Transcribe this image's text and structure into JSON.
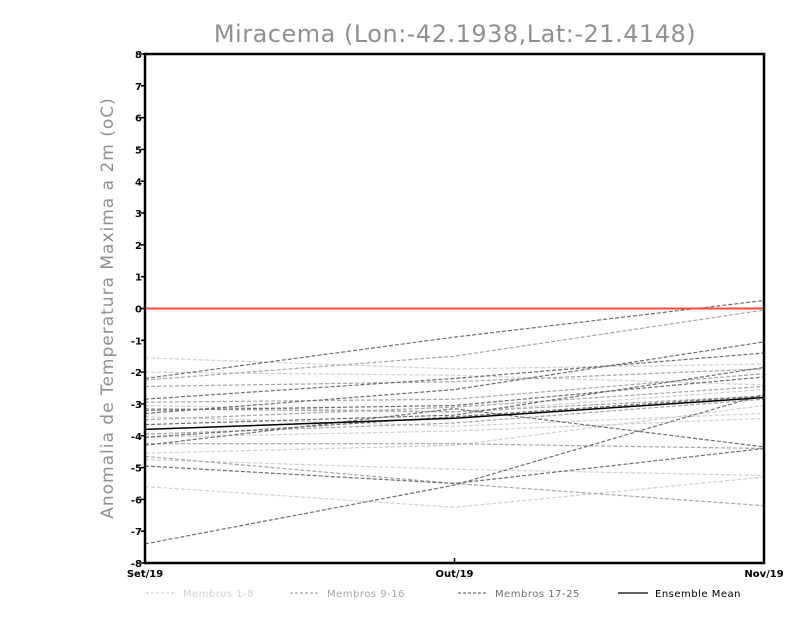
{
  "chart_data": {
    "type": "line",
    "title": "Miracema (Lon:-42.1938,Lat:-21.4148)",
    "ylabel": "Anomalia de Temperatura Maxima a 2m (oC)",
    "xlabel": "",
    "categories": [
      "Set/19",
      "Out/19",
      "Nov/19"
    ],
    "ylim": [
      -8,
      8
    ],
    "yticks": [
      "-8",
      "-7",
      "-6",
      "-5",
      "-4",
      "-3",
      "-2",
      "-1",
      "0",
      "1",
      "2",
      "3",
      "4",
      "5",
      "6",
      "7",
      "8"
    ],
    "reference_line": {
      "value": 0,
      "color": "#ff4a3a"
    },
    "legend_position": "bottom",
    "series": [
      {
        "name": "Membros 1-8",
        "color": "#d0d0d0",
        "style": "dashed",
        "members": [
          [
            -1.55,
            -1.9,
            -1.75
          ],
          [
            -2.0,
            -2.1,
            -2.4
          ],
          [
            -3.05,
            -3.25,
            -2.55
          ],
          [
            -3.4,
            -3.7,
            -3.3
          ],
          [
            -4.05,
            -3.85,
            -3.45
          ],
          [
            -4.55,
            -4.3,
            -3.05
          ],
          [
            -4.75,
            -5.05,
            -5.25
          ],
          [
            -5.6,
            -6.25,
            -5.3
          ]
        ]
      },
      {
        "name": "Membros 9-16",
        "color": "#a6a6a6",
        "style": "dashed",
        "members": [
          [
            -2.25,
            -1.5,
            -0.05
          ],
          [
            -2.45,
            -2.3,
            -1.9
          ],
          [
            -2.95,
            -2.85,
            -2.05
          ],
          [
            -3.15,
            -3.25,
            -2.75
          ],
          [
            -3.5,
            -3.1,
            -2.45
          ],
          [
            -3.95,
            -3.6,
            -2.85
          ],
          [
            -4.25,
            -4.25,
            -4.4
          ],
          [
            -4.65,
            -5.5,
            -6.2
          ]
        ]
      },
      {
        "name": "Membros 17-25",
        "color": "#6e6e6e",
        "style": "dashed",
        "members": [
          [
            -2.2,
            -0.9,
            0.25
          ],
          [
            -2.85,
            -2.2,
            -1.4
          ],
          [
            -3.3,
            -2.55,
            -1.05
          ],
          [
            -3.2,
            -3.05,
            -2.15
          ],
          [
            -3.65,
            -3.35,
            -1.85
          ],
          [
            -4.05,
            -3.4,
            -2.75
          ],
          [
            -4.3,
            -3.15,
            -4.35
          ],
          [
            -4.95,
            -5.5,
            -4.4
          ],
          [
            -7.4,
            -5.55,
            -2.7
          ]
        ]
      },
      {
        "name": "Ensemble Mean",
        "color": "#000000",
        "style": "solid",
        "members": [
          [
            -3.8,
            -3.45,
            -2.8
          ]
        ]
      }
    ]
  }
}
